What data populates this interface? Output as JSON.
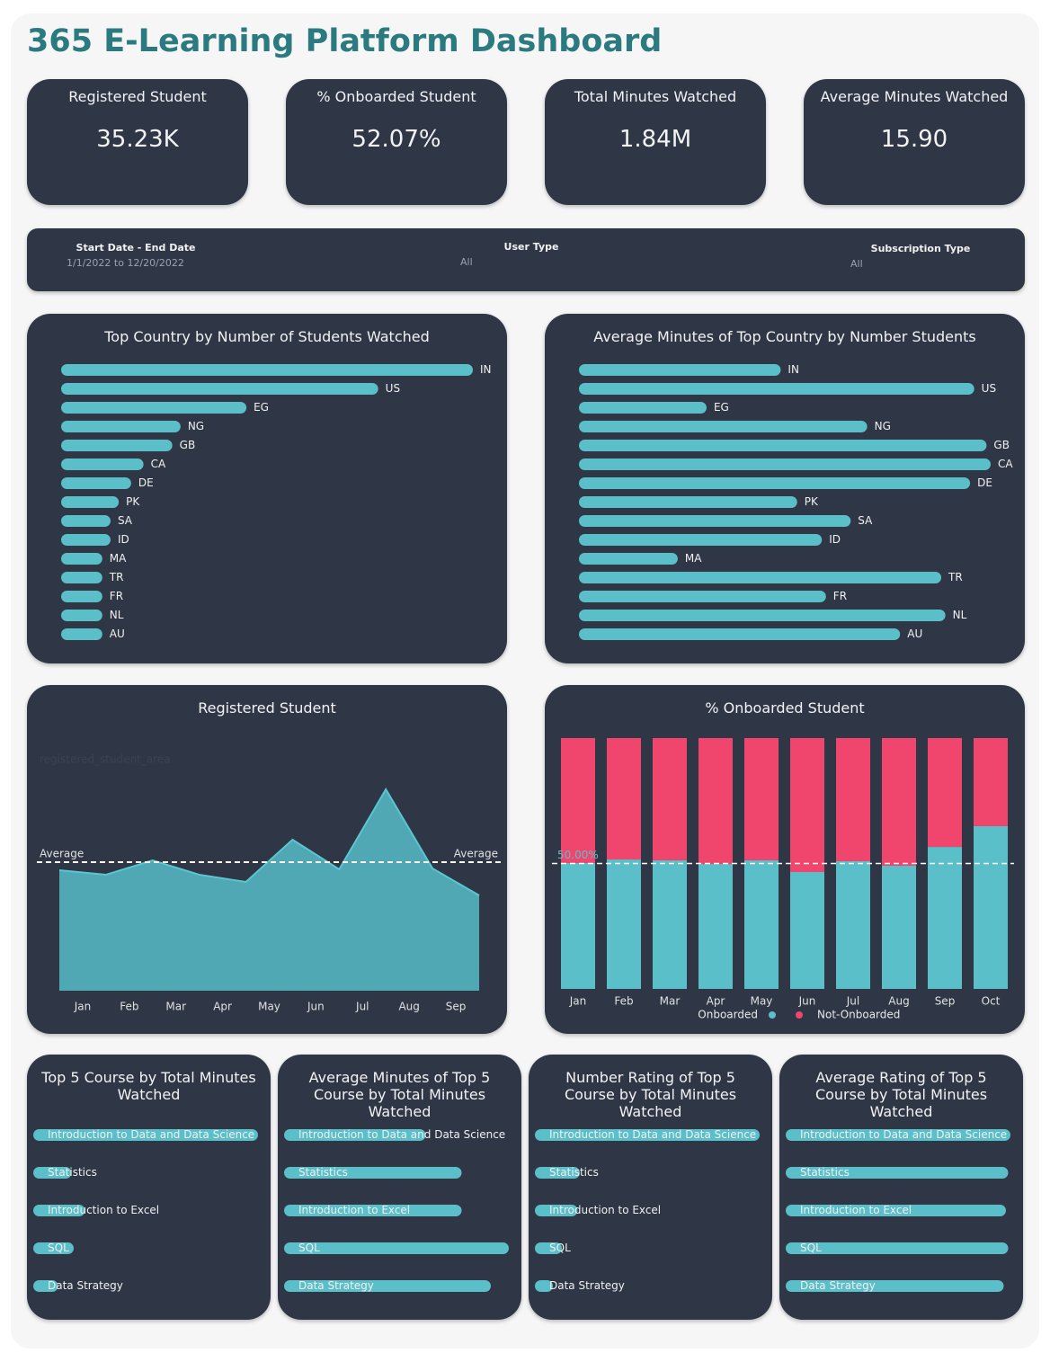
{
  "title": "365 E-Learning Platform Dashboard",
  "kpis": [
    {
      "label": "Registered Student",
      "value": "35.23K"
    },
    {
      "label": "% Onboarded Student",
      "value": "52.07%"
    },
    {
      "label": "Total Minutes Watched",
      "value": "1.84M"
    },
    {
      "label": "Average Minutes Watched",
      "value": "15.90"
    }
  ],
  "filters": [
    {
      "label": "Start Date - End Date",
      "value": "1/1/2022 to 12/20/2022"
    },
    {
      "label": "User Type",
      "value": "All"
    },
    {
      "label": "Subscription Type",
      "value": "All"
    }
  ],
  "chart_data": [
    {
      "type": "hbar",
      "title": "Top Country by Number of Students Watched",
      "label_position": "end",
      "color": "#5bbfc9",
      "categories": [
        "IN",
        "US",
        "EG",
        "NG",
        "GB",
        "CA",
        "DE",
        "PK",
        "SA",
        "ID",
        "MA",
        "TR",
        "FR",
        "NL",
        "AU"
      ],
      "values": [
        100,
        77,
        45,
        29,
        27,
        20,
        17,
        14,
        12,
        12,
        10,
        10,
        10,
        10,
        10
      ],
      "xlim": [
        0,
        100
      ]
    },
    {
      "type": "hbar",
      "title": "Average Minutes of Top Country by Number Students",
      "label_position": "end",
      "color": "#5bbfc9",
      "categories": [
        "IN",
        "US",
        "EG",
        "NG",
        "GB",
        "CA",
        "DE",
        "PK",
        "SA",
        "ID",
        "MA",
        "TR",
        "FR",
        "NL",
        "AU"
      ],
      "values": [
        49,
        96,
        31,
        70,
        99,
        100,
        95,
        53,
        66,
        59,
        24,
        88,
        60,
        89,
        78
      ],
      "xlim": [
        0,
        100
      ]
    },
    {
      "type": "area",
      "title": "Registered Student",
      "watermark": "registered_student_area",
      "color": "#4fa8b3",
      "x": [
        0,
        1,
        2,
        3,
        4,
        5,
        6,
        7,
        8,
        9
      ],
      "xlim": [
        0,
        9
      ],
      "xticks": [
        {
          "value": 0.5,
          "label": "Jan"
        },
        {
          "value": 1.5,
          "label": "Feb"
        },
        {
          "value": 2.5,
          "label": "Mar"
        },
        {
          "value": 3.5,
          "label": "Apr"
        },
        {
          "value": 4.5,
          "label": "May"
        },
        {
          "value": 5.5,
          "label": "Jun"
        },
        {
          "value": 6.5,
          "label": "Jul"
        },
        {
          "value": 7.5,
          "label": "Aug"
        },
        {
          "value": 8.5,
          "label": "Sep"
        }
      ],
      "values": [
        134,
        129,
        145,
        129,
        121,
        168,
        135,
        224,
        136,
        106
      ],
      "ylim": [
        0,
        300
      ],
      "average": {
        "value": 143,
        "label": "Average"
      }
    },
    {
      "type": "stacked_bar",
      "title": "% Onboarded Student",
      "categories": [
        "Jan",
        "Feb",
        "Mar",
        "Apr",
        "May",
        "Jun",
        "Jul",
        "Aug",
        "Sep",
        "Oct"
      ],
      "series": [
        {
          "name": "Onboarded",
          "color": "#5bbfc9",
          "values": [
            50.2,
            51.6,
            51.3,
            49.8,
            51.3,
            46.6,
            50.9,
            49.1,
            56.6,
            64.9
          ]
        },
        {
          "name": "Not-Onboarded",
          "color": "#f0466e",
          "values": [
            49.8,
            48.4,
            48.7,
            50.2,
            48.7,
            53.4,
            49.1,
            50.9,
            43.4,
            35.1
          ]
        }
      ],
      "ylim": [
        0,
        100
      ],
      "reference": {
        "value": 50,
        "label": "50.00%"
      }
    },
    {
      "type": "hbar",
      "title": "Top 5 Course by Total Minutes Watched",
      "label_position": "inside",
      "color": "#5bbfc9",
      "categories": [
        "Introduction to Data and Data Science",
        "Statistics",
        "Introduction to Excel",
        "SQL",
        "Data Strategy"
      ],
      "values": [
        100,
        17,
        23,
        18,
        11
      ],
      "xlim": [
        0,
        100
      ]
    },
    {
      "type": "hbar",
      "title": "Average Minutes of Top 5 Course by Total Minutes Watched",
      "label_position": "inside",
      "color": "#5bbfc9",
      "categories": [
        "Introduction to Data and Data Science",
        "Statistics",
        "Introduction to Excel",
        "SQL",
        "Data Strategy"
      ],
      "values": [
        63,
        79,
        79,
        100,
        92
      ],
      "xlim": [
        0,
        100
      ]
    },
    {
      "type": "hbar",
      "title": "Number Rating of Top 5 Course by Total Minutes Watched",
      "label_position": "inside",
      "color": "#5bbfc9",
      "categories": [
        "Introduction to Data and Data Science",
        "Statistics",
        "Introduction to Excel",
        "SQL",
        "Data Strategy"
      ],
      "values": [
        100,
        20,
        19,
        12,
        8
      ],
      "xlim": [
        0,
        100
      ]
    },
    {
      "type": "hbar",
      "title": "Average Rating of Top 5 Course by Total Minutes Watched",
      "label_position": "inside",
      "color": "#5bbfc9",
      "categories": [
        "Introduction to Data and Data Science",
        "Statistics",
        "Introduction to Excel",
        "SQL",
        "Data Strategy"
      ],
      "values": [
        100,
        99,
        98,
        99,
        97
      ],
      "xlim": [
        0,
        100
      ]
    }
  ]
}
